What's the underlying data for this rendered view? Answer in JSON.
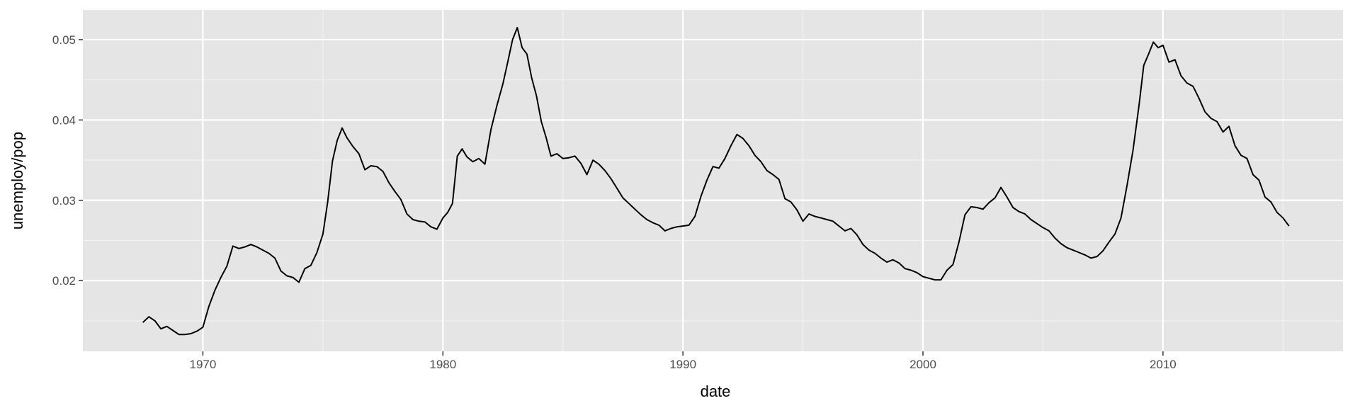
{
  "chart_data": {
    "type": "line",
    "title": "",
    "xlabel": "date",
    "ylabel": "unemploy/pop",
    "xlim": [
      1965.0,
      2017.5
    ],
    "ylim": [
      0.0112,
      0.0537
    ],
    "x_ticks": [
      1970,
      1980,
      1990,
      2000,
      2010
    ],
    "x_tick_labels": [
      "1970",
      "1980",
      "1990",
      "2000",
      "2010"
    ],
    "y_ticks": [
      0.02,
      0.03,
      0.04,
      0.05
    ],
    "y_tick_labels": [
      "0.02",
      "0.03",
      "0.04",
      "0.05"
    ],
    "grid": true,
    "background": "#e5e5e5",
    "line_color": "#000000",
    "series": [
      {
        "x": [
          1967.5,
          1967.75,
          1968.0,
          1968.25,
          1968.5,
          1968.75,
          1969.0,
          1969.25,
          1969.5,
          1969.75,
          1970.0,
          1970.25,
          1970.5,
          1970.75,
          1971.0,
          1971.25,
          1971.5,
          1971.75,
          1972.0,
          1972.25,
          1972.5,
          1972.75,
          1973.0,
          1973.25,
          1973.5,
          1973.75,
          1974.0,
          1974.25,
          1974.5,
          1974.75,
          1975.0,
          1975.2,
          1975.4,
          1975.6,
          1975.8,
          1976.0,
          1976.25,
          1976.5,
          1976.75,
          1977.0,
          1977.25,
          1977.5,
          1977.75,
          1978.0,
          1978.25,
          1978.5,
          1978.75,
          1979.0,
          1979.25,
          1979.5,
          1979.75,
          1980.0,
          1980.2,
          1980.4,
          1980.6,
          1980.8,
          1981.0,
          1981.25,
          1981.5,
          1981.75,
          1982.0,
          1982.25,
          1982.5,
          1982.7,
          1982.9,
          1983.1,
          1983.3,
          1983.5,
          1983.7,
          1983.9,
          1984.1,
          1984.3,
          1984.5,
          1984.75,
          1985.0,
          1985.25,
          1985.5,
          1985.75,
          1986.0,
          1986.25,
          1986.5,
          1986.75,
          1987.0,
          1987.25,
          1987.5,
          1987.75,
          1988.0,
          1988.25,
          1988.5,
          1988.75,
          1989.0,
          1989.25,
          1989.5,
          1989.75,
          1990.0,
          1990.25,
          1990.5,
          1990.75,
          1991.0,
          1991.25,
          1991.5,
          1991.75,
          1992.0,
          1992.25,
          1992.5,
          1992.75,
          1993.0,
          1993.25,
          1993.5,
          1993.75,
          1994.0,
          1994.25,
          1994.5,
          1994.75,
          1995.0,
          1995.25,
          1995.5,
          1995.75,
          1996.0,
          1996.25,
          1996.5,
          1996.75,
          1997.0,
          1997.25,
          1997.5,
          1997.75,
          1998.0,
          1998.25,
          1998.5,
          1998.75,
          1999.0,
          1999.25,
          1999.5,
          1999.75,
          2000.0,
          2000.25,
          2000.5,
          2000.75,
          2001.0,
          2001.25,
          2001.5,
          2001.75,
          2002.0,
          2002.25,
          2002.5,
          2002.75,
          2003.0,
          2003.25,
          2003.5,
          2003.75,
          2004.0,
          2004.25,
          2004.5,
          2004.75,
          2005.0,
          2005.25,
          2005.5,
          2005.75,
          2006.0,
          2006.25,
          2006.5,
          2006.75,
          2007.0,
          2007.25,
          2007.5,
          2007.75,
          2008.0,
          2008.25,
          2008.5,
          2008.75,
          2009.0,
          2009.2,
          2009.4,
          2009.6,
          2009.8,
          2010.0,
          2010.25,
          2010.5,
          2010.75,
          2011.0,
          2011.25,
          2011.5,
          2011.75,
          2012.0,
          2012.25,
          2012.5,
          2012.75,
          2013.0,
          2013.25,
          2013.5,
          2013.75,
          2014.0,
          2014.25,
          2014.5,
          2014.75,
          2015.0,
          2015.25
        ],
        "y": [
          0.0148,
          0.0155,
          0.015,
          0.014,
          0.0143,
          0.0138,
          0.0133,
          0.0133,
          0.0134,
          0.0137,
          0.0142,
          0.0168,
          0.0188,
          0.0204,
          0.0218,
          0.0243,
          0.024,
          0.0242,
          0.0245,
          0.0242,
          0.0238,
          0.0234,
          0.0228,
          0.0212,
          0.0206,
          0.0204,
          0.0198,
          0.0215,
          0.0219,
          0.0235,
          0.0258,
          0.0298,
          0.0349,
          0.0375,
          0.039,
          0.0378,
          0.0367,
          0.0358,
          0.0338,
          0.0343,
          0.0342,
          0.0336,
          0.0322,
          0.0311,
          0.0301,
          0.0283,
          0.0276,
          0.0274,
          0.0273,
          0.0267,
          0.0264,
          0.0278,
          0.0285,
          0.0296,
          0.0355,
          0.0364,
          0.0354,
          0.0348,
          0.0352,
          0.0345,
          0.0388,
          0.0418,
          0.0445,
          0.0472,
          0.05,
          0.0515,
          0.049,
          0.0482,
          0.0452,
          0.043,
          0.0398,
          0.0378,
          0.0355,
          0.0358,
          0.0352,
          0.0353,
          0.0355,
          0.0346,
          0.0332,
          0.035,
          0.0345,
          0.0337,
          0.0327,
          0.0315,
          0.0303,
          0.0296,
          0.0289,
          0.0282,
          0.0276,
          0.0272,
          0.0269,
          0.0262,
          0.0265,
          0.0267,
          0.0268,
          0.0269,
          0.028,
          0.0305,
          0.0325,
          0.0342,
          0.034,
          0.0352,
          0.0368,
          0.0382,
          0.0377,
          0.0368,
          0.0356,
          0.0348,
          0.0337,
          0.0332,
          0.0326,
          0.0302,
          0.0298,
          0.0288,
          0.0274,
          0.0283,
          0.028,
          0.0278,
          0.0276,
          0.0274,
          0.0268,
          0.0262,
          0.0265,
          0.0257,
          0.0245,
          0.0238,
          0.0234,
          0.0228,
          0.0223,
          0.0226,
          0.0222,
          0.0215,
          0.0213,
          0.021,
          0.0205,
          0.0203,
          0.0201,
          0.0201,
          0.0213,
          0.022,
          0.0248,
          0.0282,
          0.0292,
          0.0291,
          0.0289,
          0.0297,
          0.0303,
          0.0316,
          0.0304,
          0.0291,
          0.0286,
          0.0283,
          0.0276,
          0.0271,
          0.0266,
          0.0262,
          0.0253,
          0.0246,
          0.0241,
          0.0238,
          0.0235,
          0.0232,
          0.0228,
          0.023,
          0.0237,
          0.0248,
          0.0258,
          0.0278,
          0.0318,
          0.0362,
          0.0418,
          0.0468,
          0.0482,
          0.0497,
          0.049,
          0.0493,
          0.0472,
          0.0475,
          0.0455,
          0.0446,
          0.0442,
          0.0427,
          0.041,
          0.0402,
          0.0398,
          0.0385,
          0.0392,
          0.0368,
          0.0356,
          0.0352,
          0.0332,
          0.0325,
          0.0304,
          0.0298,
          0.0285,
          0.0278,
          0.0268
        ]
      }
    ]
  }
}
